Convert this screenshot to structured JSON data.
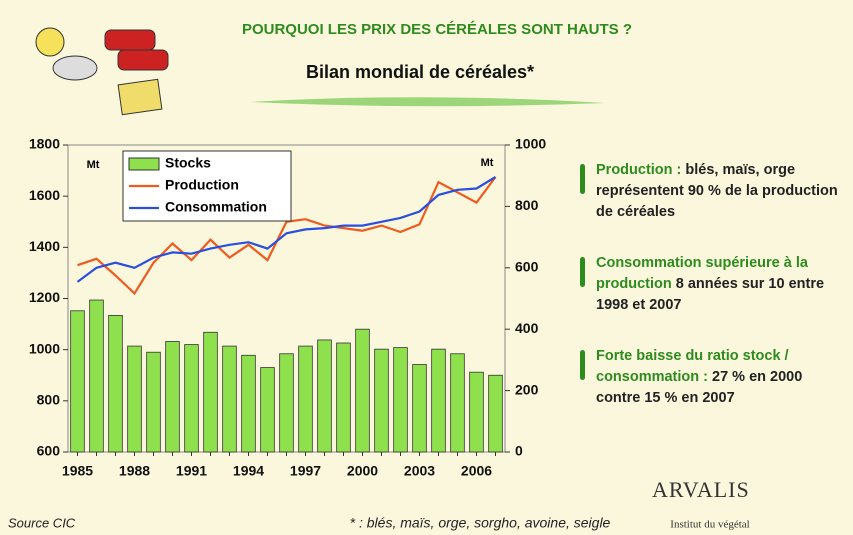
{
  "title": "POURQUOI LES PRIX DES CÉRÉALES SONT HAUTS ?",
  "subtitle": "Bilan mondial de céréales*",
  "chart_data": {
    "type": "bar",
    "categories": [
      "1985",
      null,
      null,
      "1988",
      null,
      null,
      "1991",
      null,
      null,
      "1994",
      null,
      null,
      "1997",
      null,
      null,
      "2000",
      null,
      null,
      "2003",
      null,
      null,
      "2006",
      null
    ],
    "series": [
      {
        "name": "Stocks",
        "type": "bar",
        "axis": "y2",
        "color": "#8ee04c",
        "values": [
          460,
          495,
          445,
          345,
          325,
          360,
          350,
          390,
          345,
          315,
          275,
          320,
          345,
          365,
          355,
          400,
          335,
          340,
          285,
          335,
          320,
          260,
          250
        ]
      },
      {
        "name": "Production",
        "type": "line",
        "color": "#f05a1e",
        "values": [
          1330,
          1355,
          1290,
          1220,
          1340,
          1415,
          1350,
          1430,
          1360,
          1410,
          1350,
          1500,
          1510,
          1485,
          1475,
          1465,
          1485,
          1460,
          1490,
          1655,
          1615,
          1575,
          1675
        ]
      },
      {
        "name": "Consommation",
        "type": "line",
        "color": "#2a4fe0",
        "values": [
          1265,
          1320,
          1340,
          1320,
          1360,
          1380,
          1375,
          1395,
          1410,
          1420,
          1395,
          1455,
          1470,
          1475,
          1485,
          1485,
          1500,
          1515,
          1540,
          1605,
          1625,
          1630,
          1675
        ]
      }
    ],
    "ylim": [
      600,
      1800
    ],
    "yticks": [
      600,
      800,
      1000,
      1200,
      1400,
      1600,
      1800
    ],
    "y2lim": [
      0,
      1000
    ],
    "y2ticks": [
      0,
      200,
      400,
      600,
      800,
      1000
    ],
    "y_unit": "Mt",
    "y2_unit": "Mt",
    "legend": "top-left"
  },
  "bullets": [
    {
      "head": "Production :",
      "text": "blés, maïs, orge représentent 90 % de la production de céréales"
    },
    {
      "head": "Consommation supérieure à la production",
      "text": "8 années sur 10 entre 1998 et 2007"
    },
    {
      "head": "Forte baisse du ratio stock / consommation :",
      "text": "27 % en 2000 contre 15 % en 2007"
    }
  ],
  "source": "Source CIC",
  "footnote": "* : blés, maïs, orge, sorgho, avoine, seigle",
  "logo": {
    "name": "ARVALIS",
    "tagline": "Institut du végétal"
  }
}
